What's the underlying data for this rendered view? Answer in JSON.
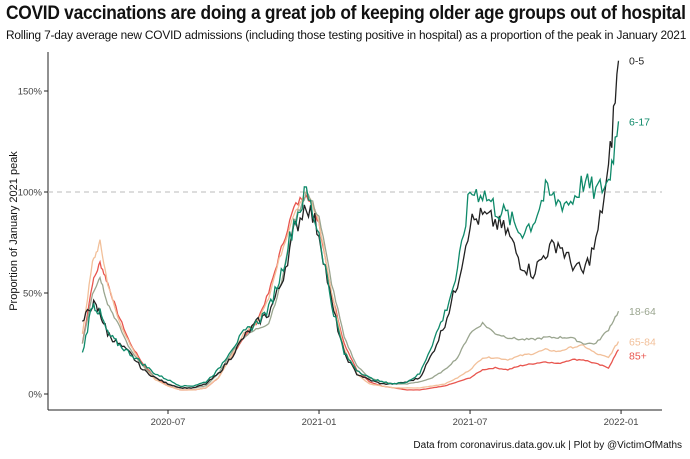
{
  "chart_data": {
    "type": "line",
    "title": "COVID vaccinations are doing a great job of keeping older age groups out of hospital",
    "subtitle": "Rolling 7-day average new COVID admissions (including those testing positive in hospital) as a proportion of the peak in January 2021",
    "ylabel": "Proportion of January 2021 peak",
    "xlabel": "",
    "caption": "Data from coronavirus.data.gov.uk | Plot by @VictimOfMaths",
    "x_unit": "months since 2020-01",
    "xlim": [
      1.3,
      25.5
    ],
    "ylim": [
      -8,
      176
    ],
    "x_ticks": [
      {
        "value": 6,
        "label": "2020-07"
      },
      {
        "value": 12,
        "label": "2021-01"
      },
      {
        "value": 18,
        "label": "2021-07"
      },
      {
        "value": 24,
        "label": "2022-01"
      }
    ],
    "y_ticks": [
      {
        "value": 0,
        "label": "0%"
      },
      {
        "value": 50,
        "label": "50%"
      },
      {
        "value": 100,
        "label": "100%"
      },
      {
        "value": 150,
        "label": "150%"
      }
    ],
    "reference_line": 100,
    "x": [
      2.6,
      3.0,
      3.3,
      3.6,
      4.0,
      4.5,
      5,
      5.5,
      6,
      6.5,
      7,
      7.5,
      8,
      8.5,
      9,
      9.5,
      10,
      10.5,
      11,
      11.5,
      12,
      12.5,
      13,
      13.5,
      14,
      14.5,
      15,
      15.5,
      16,
      16.5,
      17,
      17.5,
      18,
      18.5,
      19,
      19.5,
      20,
      20.5,
      21,
      21.5,
      22,
      22.5,
      23,
      23.5,
      23.9
    ],
    "series": [
      {
        "name": "85+",
        "color": "#e8554e",
        "values": [
          25,
          55,
          65,
          55,
          40,
          25,
          15,
          8,
          4,
          2,
          2,
          3,
          8,
          18,
          28,
          35,
          50,
          72,
          92,
          100,
          85,
          50,
          25,
          12,
          6,
          4,
          3,
          2,
          2,
          3,
          4,
          6,
          8,
          12,
          13,
          12,
          14,
          15,
          16,
          15,
          17,
          17,
          15,
          13,
          22
        ]
      },
      {
        "name": "65-84",
        "color": "#f2c09a",
        "values": [
          30,
          65,
          75,
          55,
          38,
          24,
          14,
          7,
          4,
          2,
          2,
          3,
          8,
          18,
          30,
          35,
          48,
          70,
          90,
          100,
          85,
          50,
          22,
          10,
          5,
          4,
          3,
          3,
          3,
          4,
          5,
          8,
          12,
          18,
          18,
          17,
          19,
          20,
          22,
          21,
          23,
          24,
          20,
          18,
          26
        ]
      },
      {
        "name": "18-64",
        "color": "#9aa58f",
        "values": [
          25,
          50,
          58,
          45,
          35,
          22,
          14,
          8,
          5,
          3,
          3,
          4,
          10,
          20,
          28,
          32,
          35,
          55,
          85,
          100,
          88,
          55,
          28,
          14,
          8,
          6,
          5,
          5,
          6,
          8,
          12,
          18,
          30,
          35,
          30,
          28,
          27,
          27,
          28,
          28,
          28,
          25,
          25,
          32,
          41
        ]
      },
      {
        "name": "0-5",
        "color": "#222222",
        "values": [
          35,
          45,
          40,
          30,
          25,
          20,
          12,
          8,
          5,
          3,
          3,
          5,
          10,
          18,
          28,
          35,
          40,
          55,
          80,
          95,
          80,
          45,
          20,
          10,
          7,
          5,
          5,
          6,
          8,
          20,
          35,
          55,
          85,
          88,
          85,
          80,
          65,
          60,
          70,
          75,
          65,
          60,
          75,
          110,
          165
        ]
      },
      {
        "name": "6-17",
        "color": "#0f8a6a",
        "values": [
          20,
          45,
          40,
          30,
          25,
          20,
          15,
          10,
          7,
          4,
          4,
          6,
          12,
          22,
          30,
          35,
          42,
          60,
          85,
          100,
          80,
          45,
          20,
          12,
          8,
          6,
          5,
          6,
          10,
          25,
          40,
          60,
          100,
          100,
          92,
          88,
          80,
          85,
          100,
          95,
          95,
          105,
          100,
          105,
          135
        ]
      }
    ]
  }
}
